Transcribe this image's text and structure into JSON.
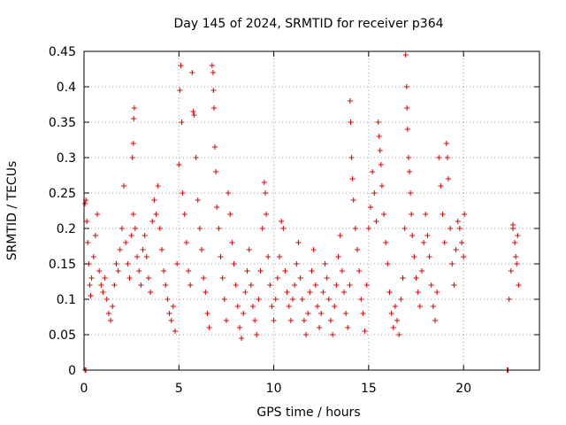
{
  "chart_data": {
    "type": "scatter",
    "title": "Day 145 of 2024, SRMTID for receiver p364",
    "xlabel": "GPS time / hours",
    "ylabel": "SRMTID / TECUs",
    "xlim": [
      0,
      24
    ],
    "ylim": [
      0,
      0.45
    ],
    "x_ticks": [
      0,
      5,
      10,
      15,
      20
    ],
    "x_tick_labels": [
      "0",
      "5",
      "10",
      "15",
      "20"
    ],
    "y_ticks": [
      0,
      0.05,
      0.1,
      0.15,
      0.2,
      0.25,
      0.3,
      0.35,
      0.4,
      0.45
    ],
    "y_tick_labels": [
      "0",
      "0.05",
      "0.1",
      "0.15",
      "0.2",
      "0.25",
      "0.3",
      "0.35",
      "0.4",
      "0.45"
    ],
    "grid": true,
    "marker": "plus",
    "marker_color": "#e00000",
    "series": [
      {
        "name": "SRMTID",
        "points": [
          [
            0.05,
            0.0
          ],
          [
            0.1,
            0.0
          ],
          [
            0.05,
            0.235
          ],
          [
            0.1,
            0.24
          ],
          [
            0.15,
            0.21
          ],
          [
            0.2,
            0.18
          ],
          [
            0.25,
            0.15
          ],
          [
            0.3,
            0.12
          ],
          [
            0.35,
            0.105
          ],
          [
            0.4,
            0.13
          ],
          [
            0.5,
            0.16
          ],
          [
            0.6,
            0.19
          ],
          [
            0.7,
            0.22
          ],
          [
            0.8,
            0.14
          ],
          [
            0.9,
            0.12
          ],
          [
            1.0,
            0.11
          ],
          [
            1.1,
            0.13
          ],
          [
            1.2,
            0.1
          ],
          [
            1.3,
            0.08
          ],
          [
            1.4,
            0.07
          ],
          [
            1.5,
            0.09
          ],
          [
            1.6,
            0.12
          ],
          [
            1.7,
            0.15
          ],
          [
            1.8,
            0.14
          ],
          [
            1.9,
            0.17
          ],
          [
            2.0,
            0.2
          ],
          [
            2.1,
            0.26
          ],
          [
            2.2,
            0.18
          ],
          [
            2.3,
            0.15
          ],
          [
            2.4,
            0.13
          ],
          [
            2.5,
            0.19
          ],
          [
            2.6,
            0.22
          ],
          [
            2.7,
            0.2
          ],
          [
            2.8,
            0.16
          ],
          [
            2.9,
            0.14
          ],
          [
            3.0,
            0.12
          ],
          [
            2.55,
            0.3
          ],
          [
            2.6,
            0.32
          ],
          [
            2.62,
            0.355
          ],
          [
            2.65,
            0.37
          ],
          [
            3.1,
            0.17
          ],
          [
            3.2,
            0.19
          ],
          [
            3.3,
            0.16
          ],
          [
            3.4,
            0.13
          ],
          [
            3.5,
            0.11
          ],
          [
            3.6,
            0.21
          ],
          [
            3.7,
            0.24
          ],
          [
            3.8,
            0.22
          ],
          [
            3.9,
            0.26
          ],
          [
            4.0,
            0.2
          ],
          [
            4.1,
            0.17
          ],
          [
            4.2,
            0.14
          ],
          [
            4.3,
            0.12
          ],
          [
            4.4,
            0.1
          ],
          [
            4.5,
            0.08
          ],
          [
            4.6,
            0.07
          ],
          [
            4.7,
            0.09
          ],
          [
            4.8,
            0.055
          ],
          [
            4.9,
            0.15
          ],
          [
            5.0,
            0.29
          ],
          [
            5.05,
            0.395
          ],
          [
            5.1,
            0.43
          ],
          [
            5.15,
            0.35
          ],
          [
            5.2,
            0.25
          ],
          [
            5.3,
            0.22
          ],
          [
            5.4,
            0.18
          ],
          [
            5.5,
            0.14
          ],
          [
            5.6,
            0.12
          ],
          [
            5.7,
            0.42
          ],
          [
            5.75,
            0.365
          ],
          [
            5.8,
            0.36
          ],
          [
            5.9,
            0.3
          ],
          [
            6.0,
            0.24
          ],
          [
            6.1,
            0.2
          ],
          [
            6.2,
            0.17
          ],
          [
            6.3,
            0.13
          ],
          [
            6.4,
            0.11
          ],
          [
            6.5,
            0.08
          ],
          [
            6.6,
            0.06
          ],
          [
            6.75,
            0.43
          ],
          [
            6.8,
            0.42
          ],
          [
            6.82,
            0.395
          ],
          [
            6.85,
            0.37
          ],
          [
            6.9,
            0.315
          ],
          [
            6.95,
            0.28
          ],
          [
            7.0,
            0.23
          ],
          [
            7.1,
            0.2
          ],
          [
            7.2,
            0.16
          ],
          [
            7.3,
            0.13
          ],
          [
            7.4,
            0.1
          ],
          [
            7.5,
            0.07
          ],
          [
            7.6,
            0.25
          ],
          [
            7.7,
            0.22
          ],
          [
            7.8,
            0.18
          ],
          [
            7.9,
            0.15
          ],
          [
            8.0,
            0.12
          ],
          [
            8.1,
            0.09
          ],
          [
            8.2,
            0.06
          ],
          [
            8.3,
            0.045
          ],
          [
            8.4,
            0.08
          ],
          [
            8.5,
            0.11
          ],
          [
            8.6,
            0.14
          ],
          [
            8.7,
            0.17
          ],
          [
            8.8,
            0.12
          ],
          [
            8.9,
            0.09
          ],
          [
            9.0,
            0.07
          ],
          [
            9.1,
            0.05
          ],
          [
            9.2,
            0.1
          ],
          [
            9.3,
            0.14
          ],
          [
            9.4,
            0.2
          ],
          [
            9.5,
            0.265
          ],
          [
            9.55,
            0.25
          ],
          [
            9.6,
            0.22
          ],
          [
            9.7,
            0.16
          ],
          [
            9.8,
            0.12
          ],
          [
            9.9,
            0.09
          ],
          [
            10.0,
            0.07
          ],
          [
            10.1,
            0.1
          ],
          [
            10.2,
            0.13
          ],
          [
            10.3,
            0.16
          ],
          [
            10.4,
            0.21
          ],
          [
            10.5,
            0.2
          ],
          [
            10.6,
            0.14
          ],
          [
            10.7,
            0.11
          ],
          [
            10.8,
            0.09
          ],
          [
            10.9,
            0.07
          ],
          [
            11.0,
            0.1
          ],
          [
            11.1,
            0.12
          ],
          [
            11.2,
            0.15
          ],
          [
            11.3,
            0.18
          ],
          [
            11.4,
            0.13
          ],
          [
            11.5,
            0.1
          ],
          [
            11.6,
            0.07
          ],
          [
            11.7,
            0.05
          ],
          [
            11.8,
            0.08
          ],
          [
            11.9,
            0.11
          ],
          [
            12.0,
            0.14
          ],
          [
            12.1,
            0.17
          ],
          [
            12.2,
            0.12
          ],
          [
            12.3,
            0.09
          ],
          [
            12.4,
            0.06
          ],
          [
            12.5,
            0.08
          ],
          [
            12.6,
            0.11
          ],
          [
            12.7,
            0.15
          ],
          [
            12.8,
            0.13
          ],
          [
            12.9,
            0.1
          ],
          [
            13.0,
            0.07
          ],
          [
            13.1,
            0.05
          ],
          [
            13.2,
            0.09
          ],
          [
            13.3,
            0.12
          ],
          [
            13.4,
            0.16
          ],
          [
            13.5,
            0.19
          ],
          [
            13.6,
            0.14
          ],
          [
            13.7,
            0.11
          ],
          [
            13.8,
            0.08
          ],
          [
            13.9,
            0.06
          ],
          [
            14.0,
            0.12
          ],
          [
            14.02,
            0.38
          ],
          [
            14.05,
            0.35
          ],
          [
            14.1,
            0.3
          ],
          [
            14.15,
            0.27
          ],
          [
            14.2,
            0.24
          ],
          [
            14.3,
            0.2
          ],
          [
            14.4,
            0.17
          ],
          [
            14.5,
            0.14
          ],
          [
            14.6,
            0.1
          ],
          [
            14.7,
            0.08
          ],
          [
            14.8,
            0.055
          ],
          [
            14.9,
            0.12
          ],
          [
            15.0,
            0.2
          ],
          [
            15.1,
            0.23
          ],
          [
            15.2,
            0.28
          ],
          [
            15.3,
            0.25
          ],
          [
            15.4,
            0.21
          ],
          [
            15.5,
            0.35
          ],
          [
            15.55,
            0.33
          ],
          [
            15.6,
            0.31
          ],
          [
            15.65,
            0.29
          ],
          [
            15.7,
            0.26
          ],
          [
            15.8,
            0.22
          ],
          [
            15.9,
            0.18
          ],
          [
            16.0,
            0.15
          ],
          [
            16.1,
            0.11
          ],
          [
            16.2,
            0.08
          ],
          [
            16.3,
            0.06
          ],
          [
            16.4,
            0.09
          ],
          [
            16.5,
            0.07
          ],
          [
            16.6,
            0.05
          ],
          [
            16.7,
            0.1
          ],
          [
            16.8,
            0.13
          ],
          [
            16.9,
            0.2
          ],
          [
            16.95,
            0.445
          ],
          [
            17.0,
            0.4
          ],
          [
            17.02,
            0.37
          ],
          [
            17.05,
            0.34
          ],
          [
            17.1,
            0.3
          ],
          [
            17.15,
            0.28
          ],
          [
            17.2,
            0.25
          ],
          [
            17.25,
            0.22
          ],
          [
            17.3,
            0.19
          ],
          [
            17.4,
            0.16
          ],
          [
            17.5,
            0.13
          ],
          [
            17.6,
            0.11
          ],
          [
            17.7,
            0.09
          ],
          [
            17.8,
            0.14
          ],
          [
            17.9,
            0.18
          ],
          [
            18.0,
            0.22
          ],
          [
            18.1,
            0.19
          ],
          [
            18.2,
            0.16
          ],
          [
            18.3,
            0.12
          ],
          [
            18.4,
            0.09
          ],
          [
            18.5,
            0.07
          ],
          [
            18.6,
            0.11
          ],
          [
            18.7,
            0.3
          ],
          [
            18.8,
            0.26
          ],
          [
            18.9,
            0.22
          ],
          [
            19.0,
            0.18
          ],
          [
            19.1,
            0.32
          ],
          [
            19.15,
            0.3
          ],
          [
            19.2,
            0.27
          ],
          [
            19.3,
            0.2
          ],
          [
            19.4,
            0.15
          ],
          [
            19.5,
            0.12
          ],
          [
            19.6,
            0.17
          ],
          [
            19.7,
            0.21
          ],
          [
            19.8,
            0.2
          ],
          [
            19.9,
            0.18
          ],
          [
            20.0,
            0.16
          ],
          [
            20.05,
            0.22
          ],
          [
            22.3,
            0.0
          ],
          [
            22.35,
            0.0
          ],
          [
            22.4,
            0.1
          ],
          [
            22.5,
            0.14
          ],
          [
            22.6,
            0.2
          ],
          [
            22.7,
            0.18
          ],
          [
            22.8,
            0.15
          ],
          [
            22.9,
            0.12
          ],
          [
            22.6,
            0.205
          ],
          [
            22.85,
            0.19
          ],
          [
            22.75,
            0.16
          ]
        ]
      }
    ]
  }
}
